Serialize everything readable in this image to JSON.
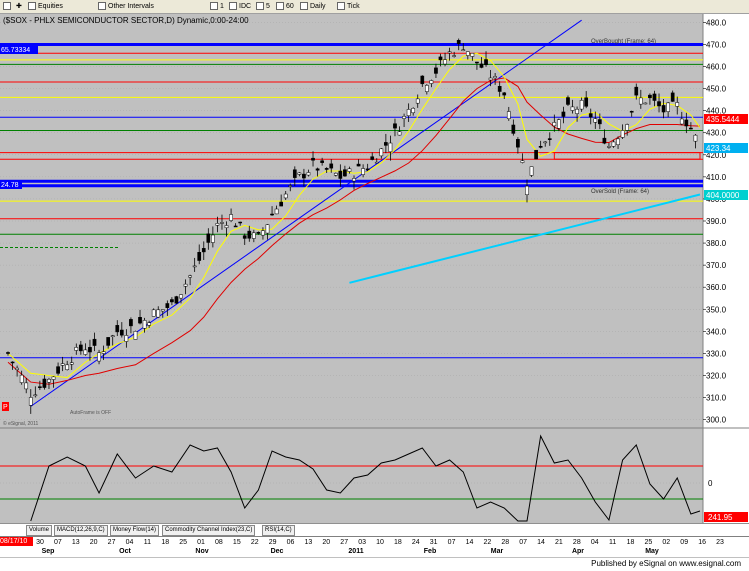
{
  "toolbar": {
    "equities": "Equities",
    "other_intervals": "Other Intervals",
    "intervals": [
      "1",
      "5",
      "60"
    ],
    "idc": "IDC",
    "daily": "Daily",
    "tick": "Tick"
  },
  "chart": {
    "title": "($SOX - PHLX SEMICONDUCTOR SECTOR,D) Dynamic,0:00-24:00",
    "overbought_label": "OverBought (Frame: 64)",
    "oversold_label": "OverSold (Frame: 64)",
    "left_value_top": "65.73334",
    "left_value_mid": "24.78",
    "watermark": "AutoFrame is OFF",
    "esignal_small": "© eSignal, 2011",
    "price_badge_1": "435.5444",
    "price_badge_2": "423.34",
    "price_badge_3": "404.0000",
    "lower_badge": "241.95",
    "date_badge": "08/17/10",
    "p_marker": "P"
  },
  "chart_data": {
    "type": "candlestick",
    "y_axis_ticks": [
      300,
      310,
      320,
      330,
      340,
      350,
      360,
      370,
      380,
      390,
      400,
      410,
      420,
      430,
      440,
      450,
      460,
      470,
      480
    ],
    "ylim": [
      298,
      482
    ],
    "lower_axis_ticks": [
      0
    ],
    "close_path": [
      [
        0,
        330
      ],
      [
        5,
        312
      ],
      [
        9,
        318
      ],
      [
        13,
        327
      ],
      [
        17,
        333
      ],
      [
        20,
        330
      ],
      [
        24,
        340
      ],
      [
        28,
        342
      ],
      [
        32,
        348
      ],
      [
        36,
        352
      ],
      [
        40,
        365
      ],
      [
        43,
        376
      ],
      [
        46,
        388
      ],
      [
        49,
        392
      ],
      [
        52,
        384
      ],
      [
        55,
        382
      ],
      [
        58,
        393
      ],
      [
        61,
        402
      ],
      [
        64,
        410
      ],
      [
        67,
        415
      ],
      [
        70,
        413
      ],
      [
        73,
        410
      ],
      [
        76,
        412
      ],
      [
        79,
        415
      ],
      [
        82,
        422
      ],
      [
        85,
        430
      ],
      [
        88,
        440
      ],
      [
        91,
        452
      ],
      [
        94,
        458
      ],
      [
        97,
        466
      ],
      [
        100,
        470
      ],
      [
        103,
        462
      ],
      [
        106,
        456
      ],
      [
        109,
        448
      ],
      [
        112,
        425
      ],
      [
        114,
        408
      ],
      [
        117,
        425
      ],
      [
        120,
        432
      ],
      [
        123,
        440
      ],
      [
        126,
        442
      ],
      [
        129,
        436
      ],
      [
        132,
        424
      ],
      [
        135,
        432
      ],
      [
        138,
        445
      ],
      [
        141,
        445
      ],
      [
        144,
        440
      ],
      [
        147,
        442
      ],
      [
        150,
        432
      ],
      [
        152,
        423
      ]
    ],
    "resistance_lines": [
      470,
      466,
      463,
      461,
      453,
      446,
      437,
      431,
      421,
      418,
      408,
      406,
      399,
      391,
      384
    ],
    "trendline": {
      "from": [
        5,
        306
      ],
      "to": [
        126,
        481
      ]
    },
    "moving_average_long": [
      [
        75,
        362
      ],
      [
        152,
        402
      ]
    ],
    "moving_average_blue": 328,
    "x_tick_labels": [
      "30",
      "07",
      "13",
      "20",
      "27",
      "04",
      "11",
      "18",
      "25",
      "01",
      "08",
      "15",
      "22",
      "29",
      "06",
      "13",
      "20",
      "27",
      "03",
      "10",
      "18",
      "24",
      "31",
      "07",
      "14",
      "22",
      "28",
      "07",
      "14",
      "21",
      "28",
      "04",
      "11",
      "18",
      "25",
      "02",
      "09",
      "16",
      "23"
    ],
    "month_labels": [
      "Sep",
      "Oct",
      "Nov",
      "Dec",
      "2011",
      "Feb",
      "Mar",
      "Apr",
      "May"
    ]
  },
  "tabs": [
    "Volume",
    "MACD(12,26,9,C)",
    "Money Flow(14)",
    "Commodity Channel Index(23,C)",
    "RSI(14,C)"
  ],
  "footer": {
    "text": "Published by eSignal on www.esignal.com"
  },
  "colors": {
    "background": "#c0c0c0",
    "blue_line": "#0000ff",
    "red_line": "#ff0000",
    "yellow_line": "#ffff00",
    "green_line": "#008000",
    "cyan_ma": "#00d0ff"
  }
}
